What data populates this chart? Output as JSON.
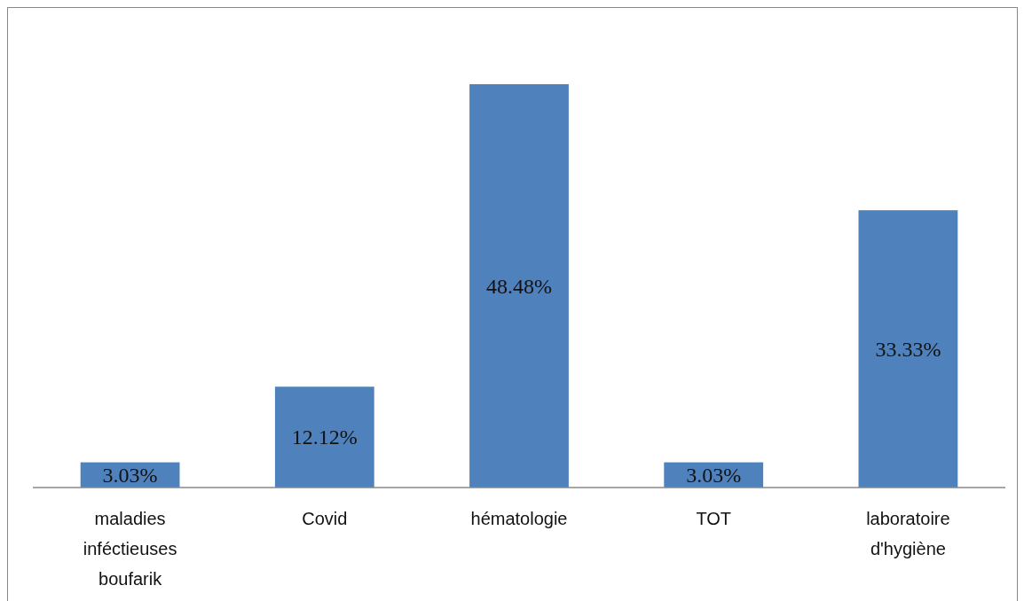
{
  "chart_data": {
    "type": "bar",
    "categories": [
      "maladies inféctieuses boufarik",
      "Covid",
      "hématologie",
      "TOT",
      "laboratoire d'hygiène"
    ],
    "values": [
      3.03,
      12.12,
      48.48,
      3.03,
      33.33
    ],
    "value_labels": [
      "3.03%",
      "12.12%",
      "48.48%",
      "3.03%",
      "33.33%"
    ],
    "color": "#4f81bd"
  }
}
